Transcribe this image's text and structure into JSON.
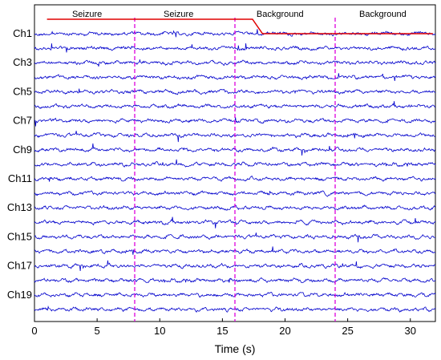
{
  "chart_data": {
    "type": "line",
    "xlabel": "Time (s)",
    "ylabel": "",
    "xlim": [
      0,
      32
    ],
    "xticks": [
      0,
      5,
      10,
      15,
      20,
      25,
      30
    ],
    "xtick_labels": [
      "0",
      "5",
      "10",
      "15",
      "20",
      "25",
      "30"
    ],
    "grid": false,
    "channel_labels": [
      "Ch1",
      "Ch3",
      "Ch5",
      "Ch7",
      "Ch9",
      "Ch11",
      "Ch13",
      "Ch15",
      "Ch17",
      "Ch19"
    ],
    "channel_count": 20,
    "trace_color": "#0000cc",
    "segment_boundaries": [
      8,
      16,
      24
    ],
    "segment_boundary_color": "#dd00dd",
    "segment_labels": [
      {
        "text": "Seizure",
        "x": 4.2
      },
      {
        "text": "Seizure",
        "x": 11.5
      },
      {
        "text": "Background",
        "x": 19.6
      },
      {
        "text": "Background",
        "x": 27.8
      }
    ],
    "annotation_line": {
      "color": "#e00000",
      "points": [
        [
          1,
          1
        ],
        [
          17.4,
          1
        ],
        [
          18.2,
          0
        ],
        [
          31.8,
          0
        ]
      ]
    }
  }
}
